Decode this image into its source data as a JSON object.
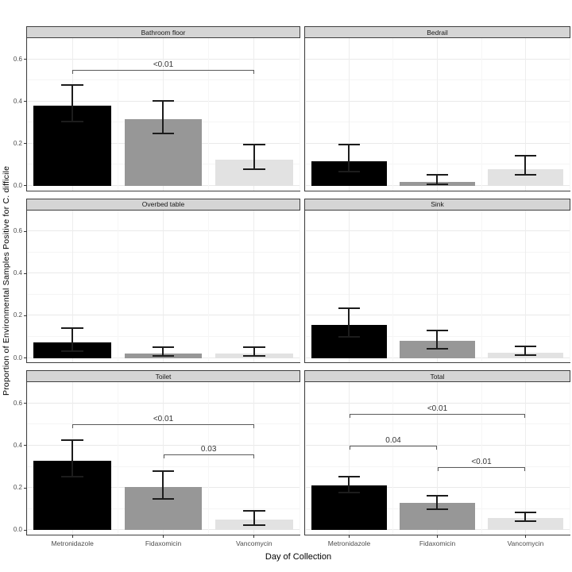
{
  "chart_data": {
    "type": "bar",
    "layout": "facet_grid_2cols_x_3rows",
    "title": "",
    "xlabel": "Day of Collection",
    "ylabel": "Proportion of Environmental Samples Positive for C. difficile",
    "ylim": [
      -0.022,
      0.7
    ],
    "yticks": [
      0.0,
      0.2,
      0.4,
      0.6
    ],
    "ytick_labels": [
      "0.0",
      "0.2",
      "0.4",
      "0.6"
    ],
    "yticks_minor": [
      0.1,
      0.3,
      0.5
    ],
    "grid": "on",
    "legend": "none",
    "categories": [
      "Metronidazole",
      "Fidaxomicin",
      "Vancomycin"
    ],
    "bar_colors": [
      "#000000",
      "#979797",
      "#e2e2e2"
    ],
    "facets": [
      {
        "title": "Bathroom floor",
        "values": [
          0.38,
          0.315,
          0.125
        ],
        "ci_low": [
          0.3,
          0.245,
          0.075
        ],
        "ci_high": [
          0.48,
          0.405,
          0.2
        ],
        "significance": [
          {
            "from": 0,
            "to": 2,
            "height": 0.55,
            "label": "<0.01"
          }
        ]
      },
      {
        "title": "Bedrail",
        "values": [
          0.115,
          0.02,
          0.08
        ],
        "ci_low": [
          0.065,
          0.005,
          0.05
        ],
        "ci_high": [
          0.2,
          0.055,
          0.145
        ],
        "significance": []
      },
      {
        "title": "Overbed table",
        "values": [
          0.075,
          0.02,
          0.02
        ],
        "ci_low": [
          0.03,
          0.005,
          0.005
        ],
        "ci_high": [
          0.145,
          0.055,
          0.055
        ],
        "significance": []
      },
      {
        "title": "Sink",
        "values": [
          0.155,
          0.08,
          0.025
        ],
        "ci_low": [
          0.095,
          0.04,
          0.01
        ],
        "ci_high": [
          0.24,
          0.135,
          0.06
        ],
        "significance": []
      },
      {
        "title": "Toilet",
        "values": [
          0.33,
          0.205,
          0.048
        ],
        "ci_low": [
          0.25,
          0.145,
          0.018
        ],
        "ci_high": [
          0.43,
          0.285,
          0.095
        ],
        "significance": [
          {
            "from": 0,
            "to": 2,
            "height": 0.5,
            "label": "<0.01"
          },
          {
            "from": 1,
            "to": 2,
            "height": 0.36,
            "label": "0.03"
          }
        ]
      },
      {
        "title": "Total",
        "values": [
          0.21,
          0.13,
          0.058
        ],
        "ci_low": [
          0.175,
          0.095,
          0.04
        ],
        "ci_high": [
          0.255,
          0.165,
          0.087
        ],
        "significance": [
          {
            "from": 0,
            "to": 2,
            "height": 0.55,
            "label": "<0.01"
          },
          {
            "from": 0,
            "to": 1,
            "height": 0.4,
            "label": "0.04"
          },
          {
            "from": 1,
            "to": 2,
            "height": 0.3,
            "label": "<0.01"
          }
        ]
      }
    ]
  }
}
